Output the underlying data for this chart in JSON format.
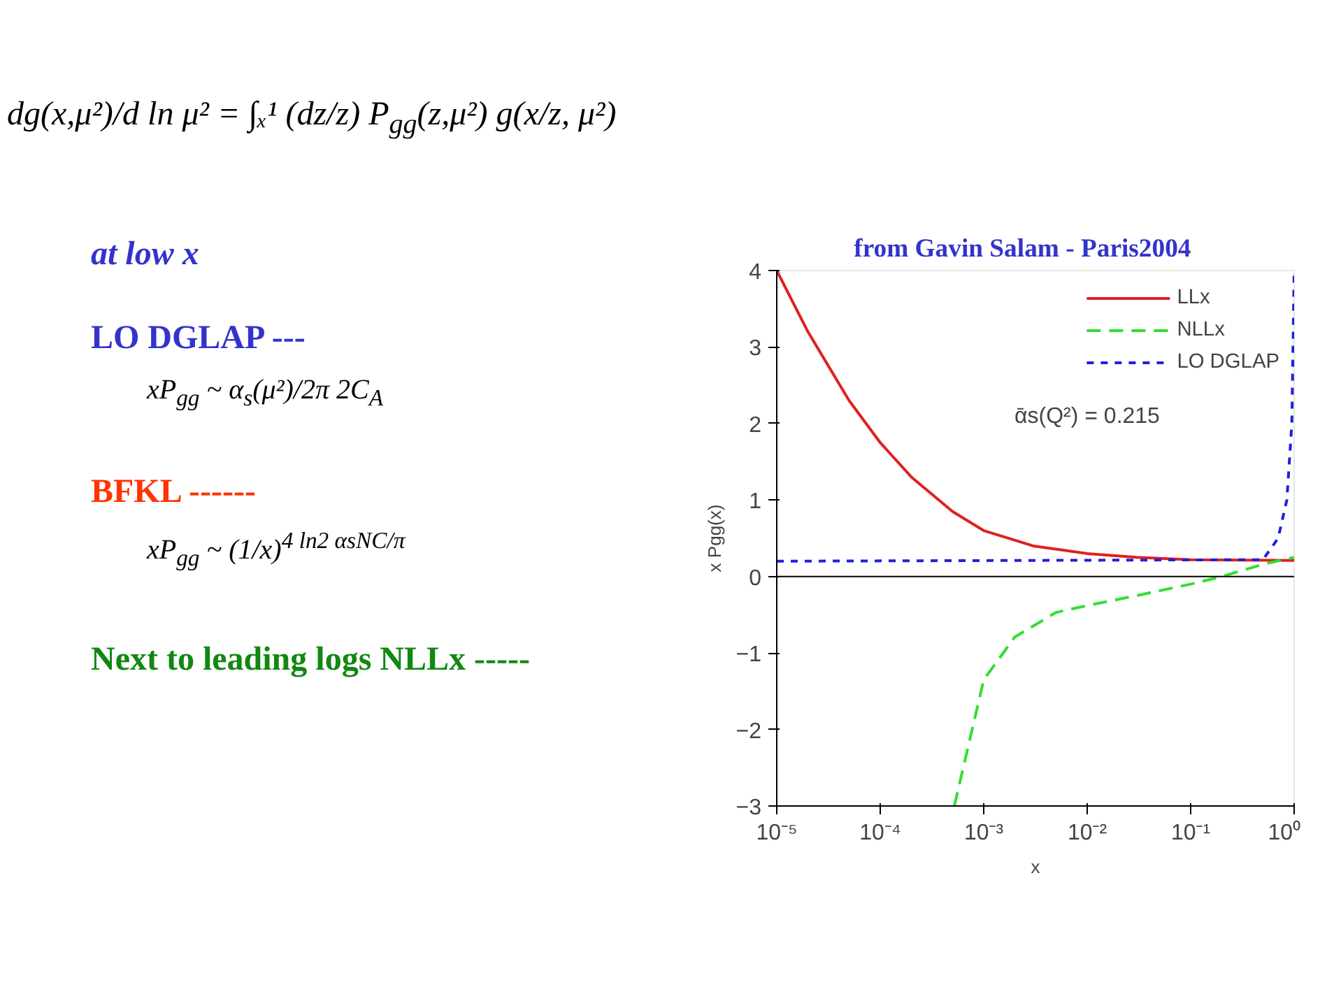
{
  "chart_data": {
    "type": "line",
    "title": "from Gavin Salam     - Paris2004",
    "xlabel": "x",
    "ylabel": "x Pgg(x)",
    "annotations": [
      "dg(x,μ²)/d ln μ² = ∫ₓ¹ (dz/z) P$_{gg}$(z,μ²) g(x/z, μ²)",
      "at low x",
      "LO DGLAP  ---",
      "xP$_{gg}$ ~ α$_{s}$(μ²)/2π 2C$_{A}$",
      "BFKL  ------",
      "xP$_{gg}$ ~ (1/x)$^{4 ln2 αsNC/π}$",
      "Next to leading logs   NLLx -----",
      "ᾱs(Q²) = 0.215"
    ],
    "series": [
      {
        "name": "LLx",
        "color": "#e02020",
        "line_style": "solid",
        "x": [
          1e-05,
          2e-05,
          5e-05,
          0.0001,
          0.0002,
          0.0005,
          0.001,
          0.003,
          0.01,
          0.03,
          0.1,
          1
        ],
        "values": [
          4.0,
          3.2,
          2.3,
          1.75,
          1.3,
          0.85,
          0.6,
          0.4,
          0.3,
          0.25,
          0.22,
          0.21
        ]
      },
      {
        "name": "NLLx",
        "color": "#33dd33",
        "line_style": "dashed",
        "x": [
          0.00052,
          0.001,
          0.002,
          0.005,
          0.01,
          0.03,
          0.1,
          0.2,
          0.5,
          1
        ],
        "values": [
          -3.0,
          -1.35,
          -0.79,
          -0.47,
          -0.38,
          -0.25,
          -0.1,
          0.0,
          0.16,
          0.25
        ]
      },
      {
        "name": "LO DGLAP",
        "color": "#2020dd",
        "line_style": "dotted",
        "x": [
          1e-05,
          0.5,
          0.7,
          0.85,
          0.95,
          1.0
        ],
        "values": [
          0.2,
          0.22,
          0.5,
          1.0,
          2.0,
          4.0
        ]
      }
    ],
    "log": "x",
    "xlim": [
      1e-05,
      1
    ],
    "ylim": [
      -3,
      4
    ],
    "xticks": [
      {
        "value": 1e-05,
        "label": "10⁻⁵"
      },
      {
        "value": 0.0001,
        "label": "10⁻⁴"
      },
      {
        "value": 0.001,
        "label": "10⁻³"
      },
      {
        "value": 0.01,
        "label": "10⁻²"
      },
      {
        "value": 0.1,
        "label": "10⁻¹"
      },
      {
        "value": 1,
        "label": "10⁰"
      }
    ],
    "yticks": [
      -3,
      -2,
      -1,
      0,
      1,
      2,
      3,
      4
    ],
    "ref_lines": [
      {
        "axis": "y",
        "value": 0,
        "color": "#000000"
      }
    ],
    "grid": false,
    "legend": "top right"
  }
}
